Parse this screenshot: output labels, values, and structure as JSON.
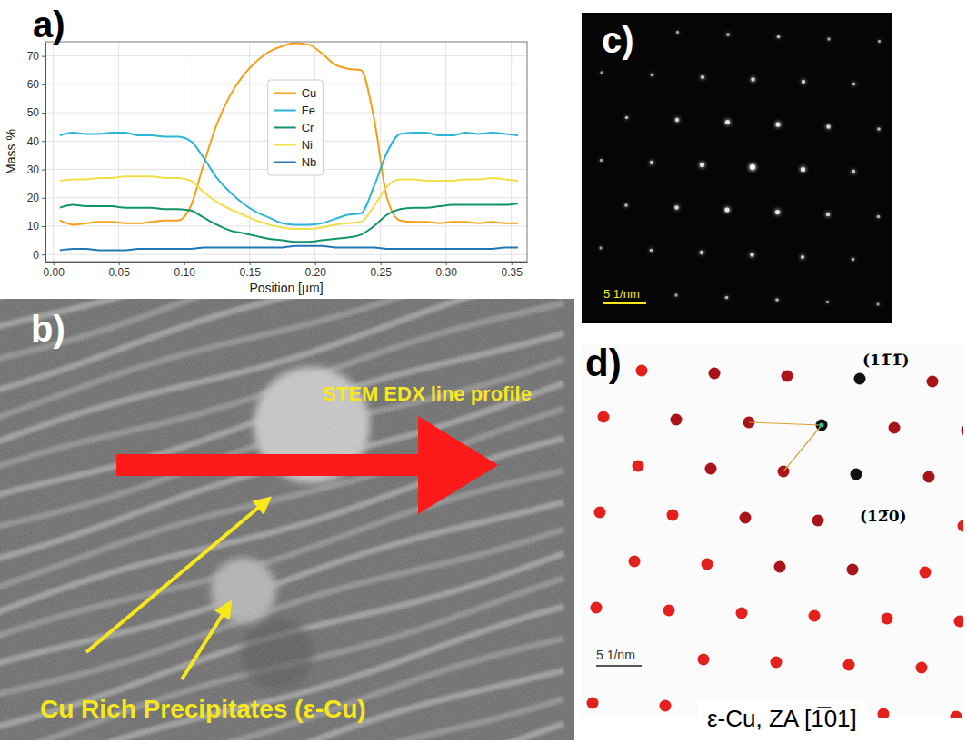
{
  "chart_data": {
    "type": "line",
    "x_label": "Position [µm]",
    "y_label": "Mass %",
    "x": [
      0.005,
      0.015,
      0.025,
      0.035,
      0.045,
      0.055,
      0.065,
      0.075,
      0.085,
      0.095,
      0.105,
      0.115,
      0.125,
      0.135,
      0.145,
      0.155,
      0.165,
      0.175,
      0.185,
      0.195,
      0.205,
      0.215,
      0.225,
      0.235,
      0.245,
      0.255,
      0.265,
      0.275,
      0.285,
      0.295,
      0.305,
      0.315,
      0.325,
      0.335,
      0.345,
      0.355
    ],
    "series": [
      {
        "name": "Cu",
        "color": "#f5a01a",
        "values": [
          12,
          10.5,
          11,
          11.5,
          11.5,
          11,
          11,
          11.5,
          12,
          12,
          17,
          32,
          46,
          56,
          63,
          68,
          71.5,
          73.5,
          74.5,
          74,
          71,
          67,
          65.5,
          65,
          48,
          20,
          12,
          11.5,
          11.5,
          11,
          11.5,
          11.5,
          11,
          11.5,
          11,
          11
        ]
      },
      {
        "name": "Fe",
        "color": "#2bb5d8",
        "values": [
          42,
          43,
          42.5,
          42.5,
          43,
          43,
          42,
          42,
          41.5,
          41.5,
          40,
          34,
          27,
          22,
          18,
          15,
          13,
          11,
          10.5,
          10.5,
          11,
          12.5,
          14,
          14.5,
          24,
          36,
          42.5,
          43,
          43,
          42,
          42,
          43,
          42.5,
          43,
          42.5,
          42
        ]
      },
      {
        "name": "Cr",
        "color": "#12936b",
        "values": [
          16.5,
          17.5,
          17,
          17,
          17,
          16.5,
          16.5,
          16.5,
          16,
          16,
          15.5,
          13,
          10.5,
          8.5,
          7.5,
          6.5,
          5.5,
          5,
          4.5,
          4.5,
          5,
          5.5,
          6,
          7,
          10,
          14,
          16,
          16.5,
          16.5,
          17,
          17.5,
          17.5,
          17.5,
          17.5,
          17.5,
          18
        ]
      },
      {
        "name": "Ni",
        "color": "#f2de4a",
        "values": [
          26,
          26.5,
          26.5,
          27,
          27,
          27.5,
          27.5,
          27.5,
          27,
          27,
          26,
          22,
          18.5,
          16,
          14,
          12,
          10.5,
          9.5,
          9,
          9,
          9.5,
          10.5,
          11,
          11.5,
          17,
          24,
          26.5,
          26.5,
          26,
          26,
          26,
          26.5,
          26.5,
          27,
          26.5,
          26
        ]
      },
      {
        "name": "Nb",
        "color": "#1f78b4",
        "values": [
          1.5,
          2,
          2,
          1.5,
          1.5,
          1.5,
          2,
          2,
          2,
          2,
          2,
          2.5,
          2.5,
          2.5,
          2.5,
          2.5,
          2.5,
          2.5,
          3,
          3,
          3,
          2.5,
          2.5,
          2.5,
          2.5,
          2,
          2,
          2,
          2,
          2,
          2,
          2,
          2,
          2,
          2.5,
          2.5
        ]
      }
    ],
    "xlim": [
      -0.006,
      0.362
    ],
    "ylim": [
      -2.5,
      75
    ],
    "xticks": [
      {
        "value": 0,
        "label": "0.00"
      },
      {
        "value": 0.05,
        "label": "0.05"
      },
      {
        "value": 0.1,
        "label": "0.10"
      },
      {
        "value": 0.15,
        "label": "0.15"
      },
      {
        "value": 0.2,
        "label": "0.20"
      },
      {
        "value": 0.25,
        "label": "0.25"
      },
      {
        "value": 0.3,
        "label": "0.30"
      },
      {
        "value": 0.35,
        "label": "0.35"
      }
    ],
    "yticks": [
      0,
      10,
      20,
      30,
      40,
      50,
      60,
      70
    ],
    "grid": true,
    "legend": "upper center"
  },
  "panels": {
    "a": {
      "letter": "a)"
    },
    "b": {
      "letter": "b)",
      "line_profile_label": "STEM EDX line profile",
      "precipitate_label": "Cu Rich Precipitates (ε-Cu)"
    },
    "c": {
      "letter": "c)",
      "scale_bar": "5 1/nm"
    },
    "d": {
      "letter": "d)",
      "spot_labels": [
        "(11̅1̅)",
        "(12̅0)"
      ],
      "scale_bar": "5 1/nm",
      "caption": "ε-Cu, ZA [1̅01]"
    }
  }
}
